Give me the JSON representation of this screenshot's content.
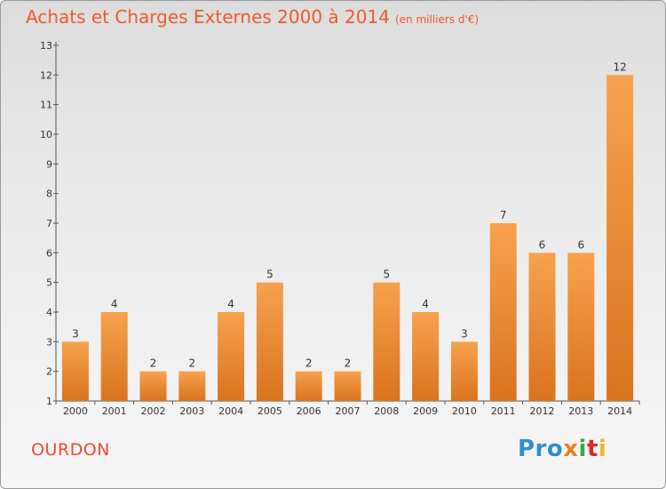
{
  "title": "Achats et Charges Externes 2000 à 2014",
  "subtitle": "(en milliers d'€)",
  "place": "OURDON",
  "logo": {
    "p1": "Pro",
    "p2": "x",
    "p3": "i",
    "p4": "t",
    "p5": "i"
  },
  "colors": {
    "bar_top": "#f7a24e",
    "bar_bottom": "#d9731e",
    "title": "#ec5b2b",
    "place": "#f04a2f"
  },
  "chart_data": {
    "type": "bar",
    "categories": [
      "2000",
      "2001",
      "2002",
      "2003",
      "2004",
      "2005",
      "2006",
      "2007",
      "2008",
      "2009",
      "2010",
      "2011",
      "2012",
      "2013",
      "2014"
    ],
    "values": [
      3,
      4,
      2,
      2,
      4,
      5,
      2,
      2,
      5,
      4,
      3,
      7,
      6,
      6,
      12
    ],
    "yticks": [
      "1",
      "2",
      "3",
      "4",
      "5",
      "6",
      "7",
      "8",
      "9",
      "10",
      "11",
      "12",
      "13"
    ],
    "ylim": [
      1,
      13
    ],
    "grid": false,
    "legend": "none"
  }
}
